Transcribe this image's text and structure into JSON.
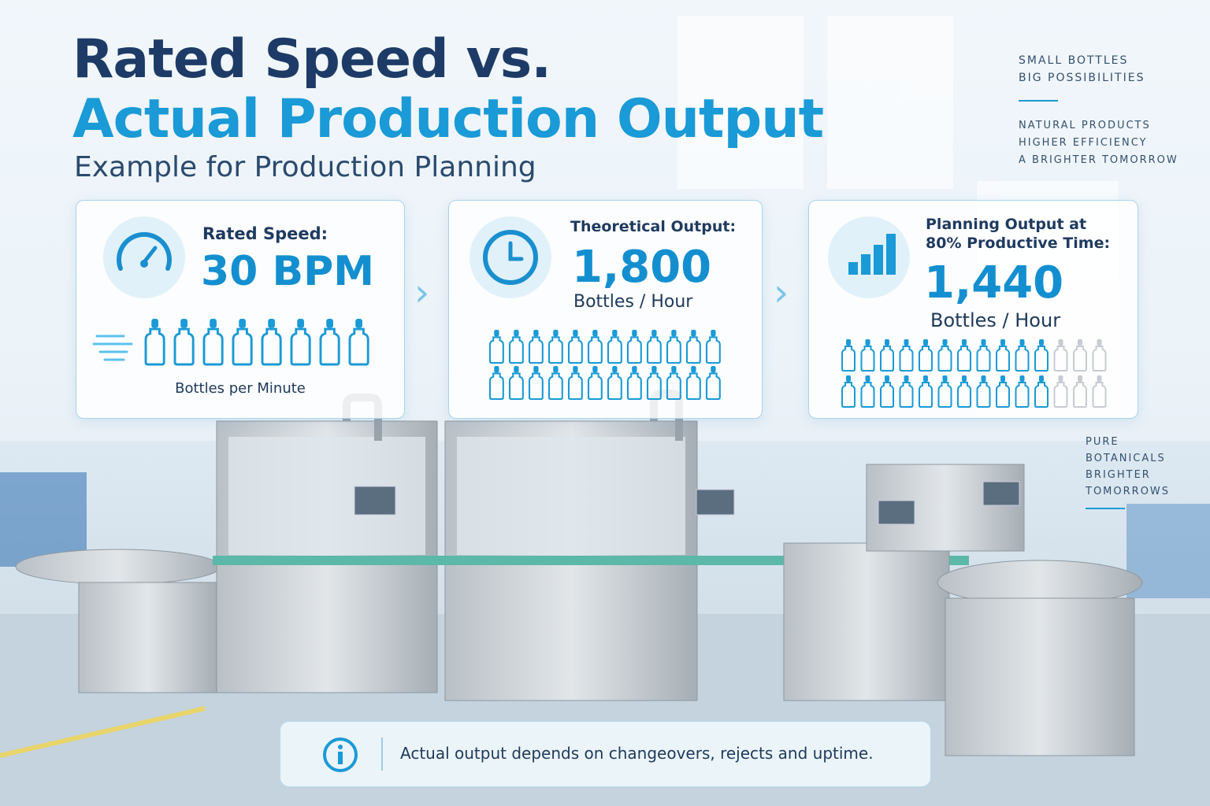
{
  "header": {
    "title_line1": "Rated Speed vs.",
    "title_line2": "Actual Production Output",
    "subtitle": "Example for Production Planning"
  },
  "tagline_top": [
    "SMALL BOTTLES",
    "BIG POSSIBILITIES"
  ],
  "tagline_middle": [
    "NATURAL PRODUCTS",
    "HIGHER EFFICIENCY",
    "A BRIGHTER TOMORROW"
  ],
  "tagline_side": [
    "PURE",
    "BOTANICALS",
    "BRIGHTER",
    "TOMORROWS"
  ],
  "cards": [
    {
      "label": "Rated Speed:",
      "value": "30 BPM",
      "caption": "Bottles per Minute"
    },
    {
      "label": "Theoretical Output:",
      "value": "1,800",
      "caption": "Bottles / Hour"
    },
    {
      "label": "Planning Output at 80% Productive Time:",
      "value": "1,440",
      "caption": "Bottles / Hour"
    }
  ],
  "note": "Actual output depends on changeovers, rejects and uptime."
}
